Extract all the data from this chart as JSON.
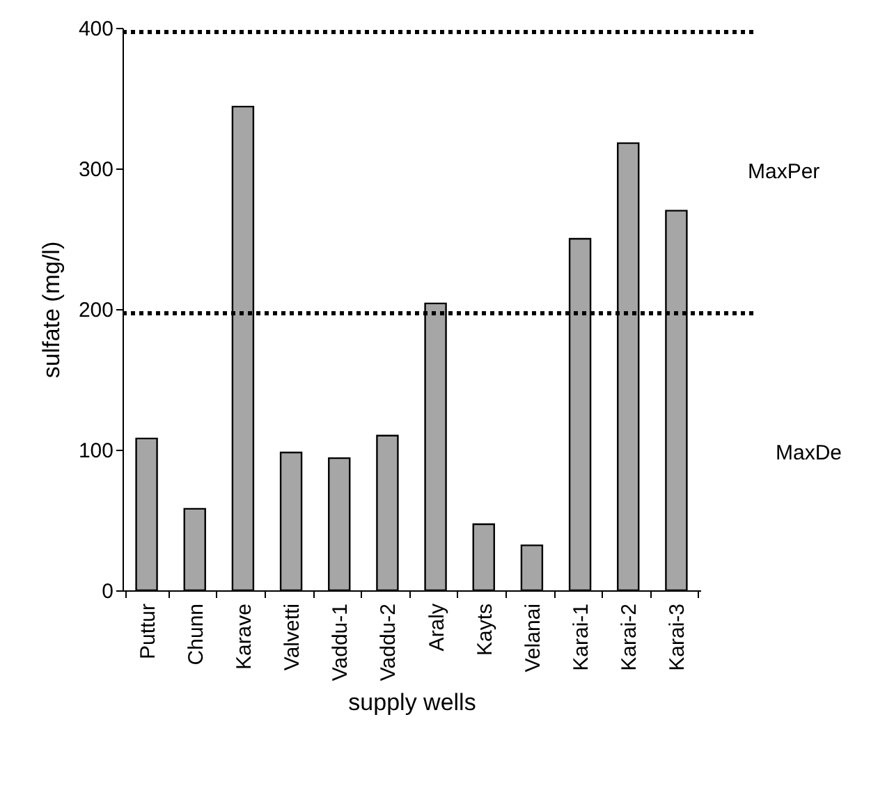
{
  "chart_data": {
    "type": "bar",
    "xlabel": "supply wells",
    "ylabel": "sulfate (mg/l)",
    "categories": [
      "Puttur",
      "Chunn",
      "Karave",
      "Valvetti",
      "Vaddu-1",
      "Vaddu-2",
      "Araly",
      "Kayts",
      "Velanai",
      "Karai-1",
      "Karai-2",
      "Karai-3"
    ],
    "values": [
      108,
      58,
      344,
      98,
      94,
      110,
      204,
      47,
      32,
      250,
      318,
      270
    ],
    "color": "#a6a6a6",
    "ylim": [
      0,
      400
    ],
    "yticks": [
      0,
      100,
      200,
      300,
      400
    ],
    "ref_lines": [
      {
        "axis": "y",
        "value": 397,
        "color": "#000000",
        "line_style": "dotted"
      },
      {
        "axis": "y",
        "value": 197,
        "color": "#000000",
        "line_style": "dotted"
      }
    ],
    "annotations": [
      "MaxPer",
      "MaxDe"
    ],
    "grid": false
  }
}
